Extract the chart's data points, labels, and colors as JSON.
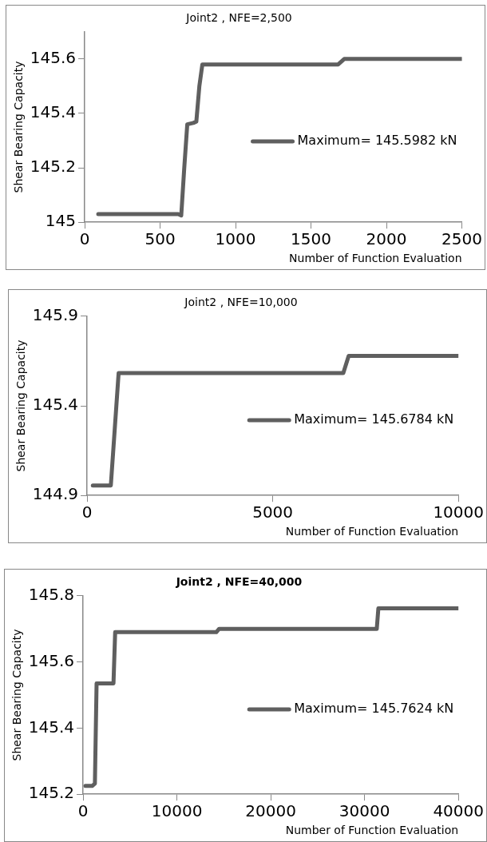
{
  "chart_data": [
    {
      "type": "line",
      "title": "Joint2 , NFE=2,500",
      "xlabel": "Number of Function Evaluation",
      "ylabel": "Shear Bearing Capacity",
      "x": [
        90,
        620,
        640,
        660,
        680,
        720,
        740,
        760,
        780,
        800,
        1650,
        1680,
        1720,
        2500
      ],
      "series": [
        {
          "name": "Maximum= 145.5982 kN",
          "color": "#5f5f5f",
          "values": [
            145.03,
            145.03,
            145.025,
            145.2,
            145.36,
            145.365,
            145.37,
            145.5,
            145.58,
            145.58,
            145.58,
            145.58,
            145.6,
            145.6
          ]
        }
      ],
      "xlim": [
        0,
        2500
      ],
      "xticks": [
        0,
        500,
        1000,
        1500,
        2000,
        2500
      ],
      "ylim": [
        145,
        145.7
      ],
      "yticks": [
        145,
        145.2,
        145.4,
        145.6
      ],
      "grid": false,
      "legend": "right",
      "marker": "none",
      "line_style": "solid"
    },
    {
      "type": "line",
      "title": "Joint2 , NFE=10,000",
      "xlabel": "Number of Function Evaluation",
      "ylabel": "Shear Bearing Capacity",
      "x": [
        155,
        640,
        850,
        6900,
        7045,
        10000
      ],
      "series": [
        {
          "name": "Maximum= 145.6784 kN",
          "color": "#5f5f5f",
          "values": [
            144.956,
            144.956,
            145.583,
            145.583,
            145.679,
            145.679
          ]
        }
      ],
      "xlim": [
        0,
        10000
      ],
      "xticks": [
        0,
        5000,
        10000
      ],
      "ylim": [
        144.9,
        145.9
      ],
      "yticks": [
        144.9,
        145.4,
        145.9
      ],
      "grid": false,
      "legend": "right",
      "marker": "none",
      "line_style": "solid"
    },
    {
      "type": "line",
      "title": "Joint2 , NFE=40,000",
      "xlabel": "Number of Function Evaluation",
      "ylabel": "Shear Bearing Capacity",
      "x": [
        250,
        970,
        1260,
        1440,
        3240,
        3420,
        14200,
        14500,
        31300,
        31470,
        40000
      ],
      "series": [
        {
          "name": "Maximum= 145.7624 kN",
          "color": "#5f5f5f",
          "values": [
            145.225,
            145.225,
            145.232,
            145.535,
            145.535,
            145.69,
            145.69,
            145.7,
            145.7,
            145.762,
            145.762
          ]
        }
      ],
      "xlim": [
        0,
        40000
      ],
      "xticks": [
        0,
        10000,
        20000,
        30000,
        40000
      ],
      "ylim": [
        145.2,
        145.8
      ],
      "yticks": [
        145.2,
        145.4,
        145.6,
        145.8
      ],
      "grid": false,
      "legend": "right",
      "marker": "none",
      "line_style": "solid"
    }
  ]
}
